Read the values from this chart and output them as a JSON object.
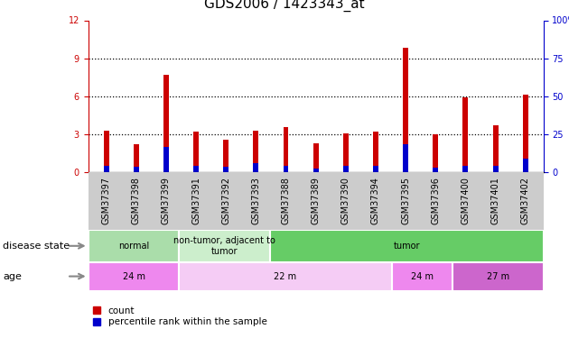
{
  "title": "GDS2006 / 1423343_at",
  "samples": [
    "GSM37397",
    "GSM37398",
    "GSM37399",
    "GSM37391",
    "GSM37392",
    "GSM37393",
    "GSM37388",
    "GSM37389",
    "GSM37390",
    "GSM37394",
    "GSM37395",
    "GSM37396",
    "GSM37400",
    "GSM37401",
    "GSM37402"
  ],
  "count_values": [
    3.3,
    2.2,
    7.7,
    3.2,
    2.6,
    3.3,
    3.6,
    2.3,
    3.1,
    3.2,
    9.8,
    3.0,
    5.9,
    3.7,
    6.1
  ],
  "percentile_values": [
    0.55,
    0.45,
    2.0,
    0.55,
    0.42,
    0.72,
    0.52,
    0.3,
    0.5,
    0.55,
    2.2,
    0.4,
    0.52,
    0.52,
    1.05
  ],
  "count_color": "#cc0000",
  "percentile_color": "#0000cc",
  "ylim_left": [
    0,
    12
  ],
  "yticks_left": [
    0,
    3,
    6,
    9,
    12
  ],
  "ylim_right": [
    0,
    100
  ],
  "yticks_right": [
    0,
    25,
    50,
    75,
    100
  ],
  "bar_width": 0.18,
  "percentile_bar_width": 0.18,
  "groups_disease": [
    {
      "label": "normal",
      "start": 0,
      "end": 3,
      "color": "#aaddaa"
    },
    {
      "label": "non-tumor, adjacent to\ntumor",
      "start": 3,
      "end": 6,
      "color": "#cceecc"
    },
    {
      "label": "tumor",
      "start": 6,
      "end": 15,
      "color": "#66cc66"
    }
  ],
  "groups_age": [
    {
      "label": "24 m",
      "start": 0,
      "end": 3,
      "color": "#ee88ee"
    },
    {
      "label": "22 m",
      "start": 3,
      "end": 10,
      "color": "#f5ccf5"
    },
    {
      "label": "24 m",
      "start": 10,
      "end": 12,
      "color": "#ee88ee"
    },
    {
      "label": "27 m",
      "start": 12,
      "end": 15,
      "color": "#cc66cc"
    }
  ],
  "disease_state_label": "disease state",
  "age_label": "age",
  "tick_label_fontsize": 7,
  "title_fontsize": 11,
  "left_axis_color": "#cc0000",
  "right_axis_color": "#0000cc",
  "xtick_bg_color": "#cccccc",
  "plot_bg_color": "#ffffff"
}
